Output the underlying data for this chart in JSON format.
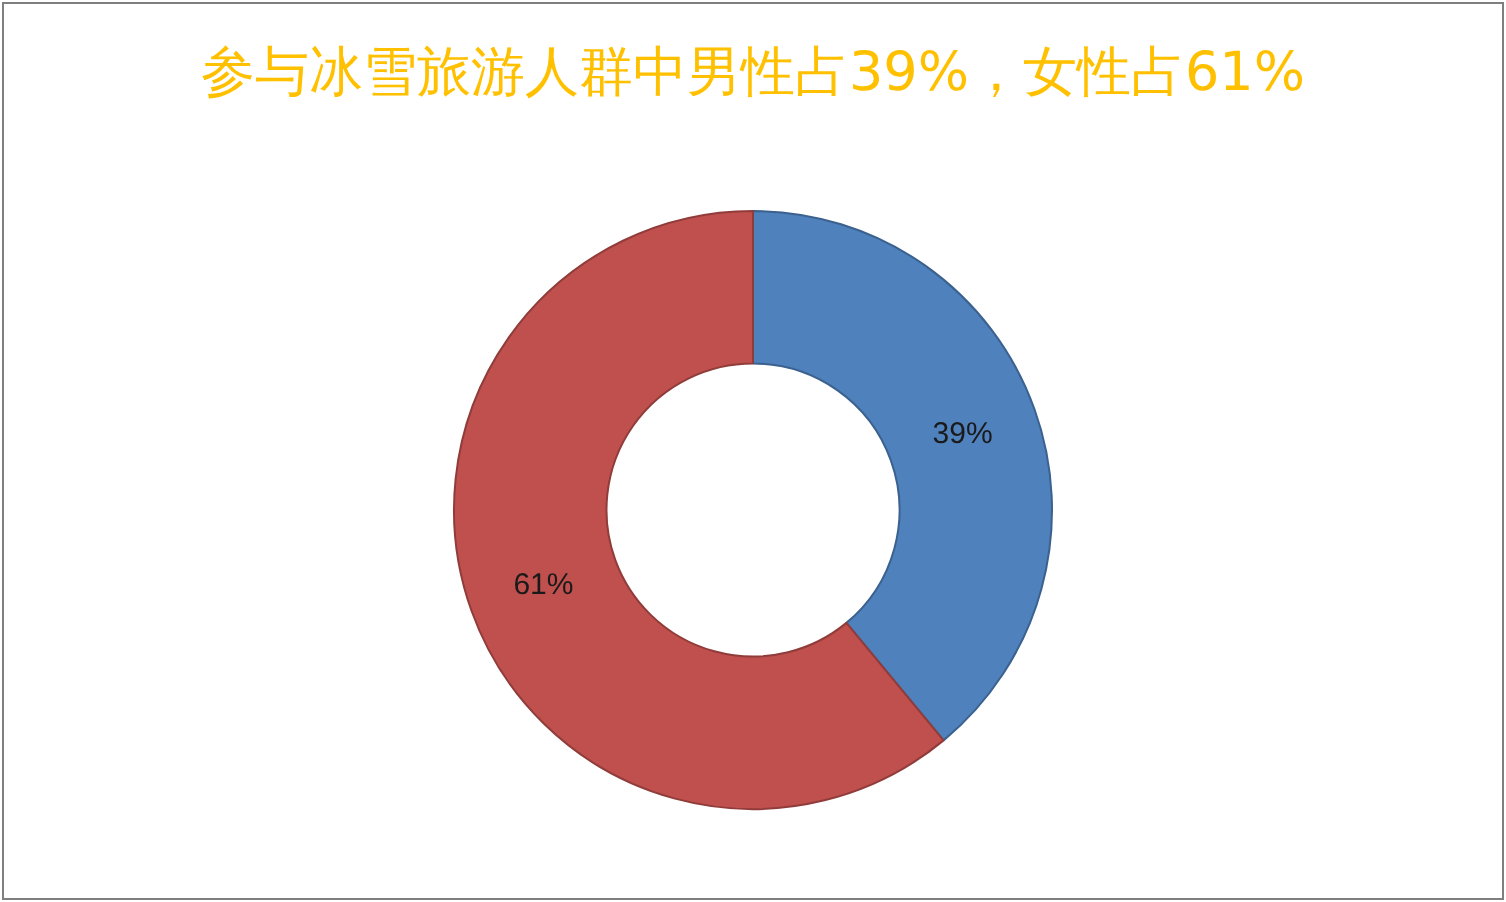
{
  "chart_data": {
    "type": "donut",
    "title": "参与冰雪旅游人群中男性占39%，女性占61%",
    "categories": [
      null,
      null
    ],
    "values": [
      39,
      61
    ],
    "colors": [
      "#4f81bd",
      "#c0504d"
    ],
    "value_labels": [
      "39%",
      "61%"
    ]
  }
}
